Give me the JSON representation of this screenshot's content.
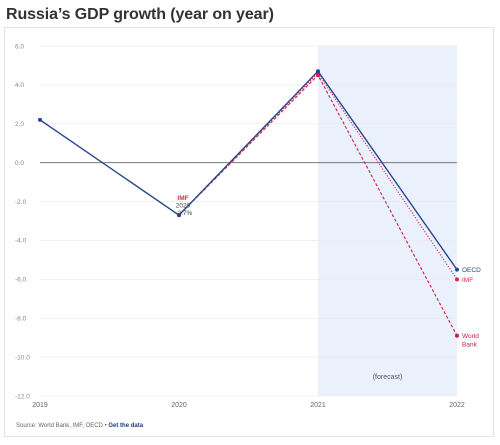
{
  "title": "Russia’s GDP growth (year on year)",
  "source": {
    "text": "Source: World Bank, IMF, OECD",
    "separator": " • ",
    "link_label": "Get the data"
  },
  "forecast_label": "(forecast)",
  "colors": {
    "oecd": "#2a4590",
    "imf": "#cf2e49",
    "world_bank": "#c62246",
    "forecast_band": "#eaf0fc",
    "zero_line": "#666666",
    "grid": "#e6e6e6"
  },
  "chart_data": {
    "type": "line",
    "title": "Russia’s GDP growth (year on year)",
    "x": [
      2019,
      2020,
      2021,
      2022
    ],
    "xlabel": "",
    "ylabel": "",
    "ylim": [
      -12.0,
      6.0
    ],
    "yticks": [
      "6.0",
      "4.0",
      "2.0",
      "0.0",
      "-2.0",
      "-4.0",
      "-6.0",
      "-8.0",
      "-10.0",
      "-12.0"
    ],
    "grid": true,
    "forecast_range": [
      2021,
      2022
    ],
    "series": [
      {
        "name": "OECD",
        "key": "oecd",
        "x": [
          2019,
          2020,
          2021,
          2022
        ],
        "values": [
          2.2,
          -2.7,
          4.7,
          -5.5
        ],
        "style": "solid"
      },
      {
        "name": "IMF",
        "key": "imf",
        "x": [
          2020,
          2021,
          2022
        ],
        "values": [
          -2.7,
          4.6,
          -6.0
        ],
        "style": "dotted"
      },
      {
        "name": "World Bank",
        "key": "world_bank",
        "x": [
          2020,
          2021,
          2022
        ],
        "values": [
          -2.7,
          4.5,
          -8.9
        ],
        "style": "dashed",
        "label_lines": [
          "World",
          "Bank"
        ]
      }
    ],
    "annotation": {
      "lines": [
        "IMF",
        "2020",
        "−2.7%"
      ],
      "x": 2020,
      "y": -2.7
    }
  }
}
